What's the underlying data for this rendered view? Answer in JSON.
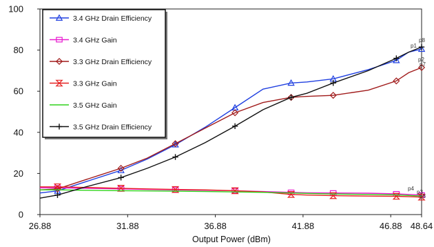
{
  "chart_data": {
    "type": "line",
    "title": "",
    "xlabel": "Output Power (dBm)",
    "ylabel": "",
    "xlim": [
      26.88,
      48.64
    ],
    "ylim": [
      0,
      100
    ],
    "xticks": [
      26.88,
      31.88,
      36.88,
      41.88,
      46.88,
      48.64
    ],
    "xtick_labels": [
      "26.88",
      "31.88",
      "36.88",
      "41.88",
      "46.88",
      "48.64"
    ],
    "yticks": [
      0,
      20,
      40,
      60,
      80,
      100
    ],
    "ytick_labels": [
      "0",
      "20",
      "40",
      "60",
      "80",
      "100"
    ],
    "grid": false,
    "legend_position": "top-left",
    "marker_labels": [
      "p1",
      "p8",
      "p2",
      "p7",
      "p4",
      "p3",
      "p8"
    ],
    "series": [
      {
        "name": "3.4 GHz Drain Efficiency",
        "color": "#1f3fe0",
        "marker": "triangle",
        "points": [
          [
            26.88,
            10.5
          ],
          [
            27.88,
            11.5
          ],
          [
            29.5,
            16
          ],
          [
            31.5,
            21.5
          ],
          [
            33,
            27
          ],
          [
            34.6,
            34
          ],
          [
            36.3,
            42.5
          ],
          [
            38,
            52
          ],
          [
            39.6,
            61
          ],
          [
            41.2,
            64
          ],
          [
            42.1,
            64.5
          ],
          [
            43.6,
            66
          ],
          [
            45.6,
            70.5
          ],
          [
            47.2,
            75
          ],
          [
            47.9,
            79
          ],
          [
            48.64,
            80.5
          ]
        ]
      },
      {
        "name": "3.4 GHz Gain",
        "color": "#e81bd0",
        "marker": "square",
        "points": [
          [
            26.88,
            13
          ],
          [
            27.88,
            13
          ],
          [
            29.5,
            12.8
          ],
          [
            31.5,
            12.5
          ],
          [
            33,
            12.2
          ],
          [
            34.6,
            12
          ],
          [
            36.3,
            11.8
          ],
          [
            38,
            11.6
          ],
          [
            39.6,
            11.2
          ],
          [
            41.2,
            10.8
          ],
          [
            42.1,
            10.6
          ],
          [
            43.6,
            10.5
          ],
          [
            45.6,
            10.4
          ],
          [
            47.2,
            10.1
          ],
          [
            47.9,
            9.8
          ],
          [
            48.64,
            9.5
          ]
        ]
      },
      {
        "name": "3.3 GHz Drain Efficiency",
        "color": "#a01a1a",
        "marker": "diamond",
        "points": [
          [
            26.88,
            12
          ],
          [
            27.88,
            12.5
          ],
          [
            29.5,
            17
          ],
          [
            31.5,
            22.5
          ],
          [
            33,
            27.5
          ],
          [
            34.6,
            34.5
          ],
          [
            36.3,
            42
          ],
          [
            38,
            49.5
          ],
          [
            39.6,
            54.5
          ],
          [
            41.2,
            57
          ],
          [
            42.1,
            57.5
          ],
          [
            43.6,
            58
          ],
          [
            45.6,
            60.5
          ],
          [
            47.2,
            65
          ],
          [
            47.9,
            69
          ],
          [
            48.64,
            71.5
          ]
        ]
      },
      {
        "name": "3.3 GHz  Gain",
        "color": "#e52020",
        "marker": "hourglass",
        "points": [
          [
            26.88,
            13.5
          ],
          [
            27.88,
            13.5
          ],
          [
            29.5,
            13.2
          ],
          [
            31.5,
            12.8
          ],
          [
            33,
            12.5
          ],
          [
            34.6,
            12.2
          ],
          [
            36.3,
            12
          ],
          [
            38,
            11.6
          ],
          [
            39.6,
            11
          ],
          [
            41.2,
            9.8
          ],
          [
            42.1,
            9.5
          ],
          [
            43.6,
            9.2
          ],
          [
            45.6,
            9
          ],
          [
            47.2,
            8.9
          ],
          [
            47.9,
            8.7
          ],
          [
            48.64,
            8.5
          ]
        ]
      },
      {
        "name": "3.5 GHz Gain",
        "color": "#2fd21a",
        "marker": "none",
        "points": [
          [
            26.88,
            12
          ],
          [
            27.88,
            12
          ],
          [
            29.5,
            11.8
          ],
          [
            31.5,
            11.6
          ],
          [
            33,
            11.5
          ],
          [
            34.6,
            11.4
          ],
          [
            36.3,
            11.2
          ],
          [
            38,
            11
          ],
          [
            39.6,
            10.8
          ],
          [
            41.2,
            10.5
          ],
          [
            42.1,
            10.3
          ],
          [
            43.6,
            10
          ],
          [
            45.6,
            9.8
          ],
          [
            47.2,
            9.6
          ],
          [
            47.9,
            9.3
          ],
          [
            48.64,
            9
          ]
        ]
      },
      {
        "name": "3.5 GHz Drain Efficiency",
        "color": "#111111",
        "marker": "plus",
        "points": [
          [
            26.88,
            8
          ],
          [
            27.88,
            9.5
          ],
          [
            29.5,
            13.5
          ],
          [
            31.5,
            18
          ],
          [
            33,
            22.5
          ],
          [
            34.6,
            28
          ],
          [
            36.3,
            35
          ],
          [
            38,
            43
          ],
          [
            39.6,
            51
          ],
          [
            41.2,
            57
          ],
          [
            42.1,
            59
          ],
          [
            43.6,
            64
          ],
          [
            45.6,
            70
          ],
          [
            47.2,
            76
          ],
          [
            47.9,
            79
          ],
          [
            48.64,
            81.5
          ]
        ]
      }
    ]
  }
}
